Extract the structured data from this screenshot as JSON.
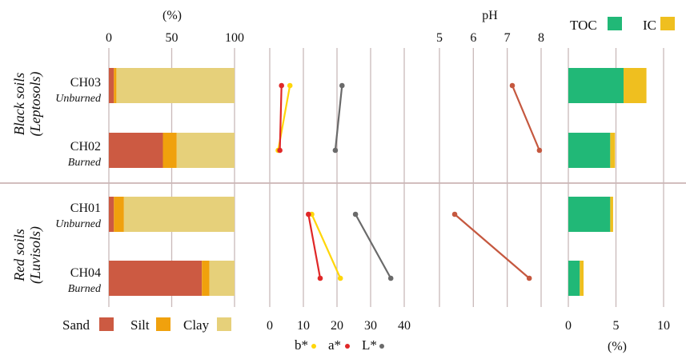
{
  "colors": {
    "sand": "#cc5a42",
    "silt": "#f0a10d",
    "clay": "#e6d07a",
    "toc": "#21b877",
    "ic": "#efbf1f",
    "b_star": "#ffd60a",
    "a_star": "#e02828",
    "l_star": "#6a6a6a",
    "ph": "#c5583f",
    "grid": "#c9b9b9",
    "divider": "#c4a8a8"
  },
  "chart_data": [
    {
      "type": "bar",
      "name": "texture",
      "stacked": true,
      "orientation": "horizontal",
      "xlabel": "(%)",
      "xlim": [
        0,
        100
      ],
      "xticks": [
        "0",
        "50",
        "100"
      ],
      "categories": [
        "CH03",
        "CH02",
        "CH01",
        "CH04"
      ],
      "series": [
        {
          "name": "Sand",
          "values": [
            4,
            43,
            4,
            74
          ]
        },
        {
          "name": "Silt",
          "values": [
            2,
            11,
            8,
            6
          ]
        },
        {
          "name": "Clay",
          "values": [
            94,
            46,
            88,
            20
          ]
        }
      ],
      "legend": [
        "Sand",
        "Silt",
        "Clay"
      ]
    },
    {
      "type": "line",
      "name": "color",
      "xlim": [
        0,
        40
      ],
      "xticks": [
        "0",
        "10",
        "20",
        "30",
        "40"
      ],
      "legend": [
        "b*",
        "a*",
        "L*"
      ],
      "series": [
        {
          "name": "b*",
          "points": [
            [
              6,
              "CH03"
            ],
            [
              2.5,
              "CH02"
            ],
            [
              12.5,
              "CH01"
            ],
            [
              21,
              "CH04"
            ]
          ]
        },
        {
          "name": "a*",
          "points": [
            [
              3.5,
              "CH03"
            ],
            [
              3,
              "CH02"
            ],
            [
              11.5,
              "CH01"
            ],
            [
              15,
              "CH04"
            ]
          ]
        },
        {
          "name": "L*",
          "points": [
            [
              21.5,
              "CH03"
            ],
            [
              19.5,
              "CH02"
            ],
            [
              25.5,
              "CH01"
            ],
            [
              36,
              "CH04"
            ]
          ]
        }
      ],
      "pairs": [
        [
          "CH03",
          "CH02"
        ],
        [
          "CH01",
          "CH04"
        ]
      ]
    },
    {
      "type": "line",
      "name": "ph",
      "xlabel": "pH",
      "xlim": [
        5,
        8
      ],
      "xticks": [
        "5",
        "6",
        "7",
        "8"
      ],
      "series": [
        {
          "name": "pH",
          "points": [
            [
              7.15,
              "CH03"
            ],
            [
              7.95,
              "CH02"
            ],
            [
              5.45,
              "CH01"
            ],
            [
              7.65,
              "CH04"
            ]
          ]
        }
      ],
      "pairs": [
        [
          "CH03",
          "CH02"
        ],
        [
          "CH01",
          "CH04"
        ]
      ]
    },
    {
      "type": "bar",
      "name": "carbon",
      "stacked": true,
      "orientation": "horizontal",
      "xlabel": "(%)",
      "xlim": [
        0,
        10
      ],
      "xticks": [
        "0",
        "5",
        "10"
      ],
      "categories": [
        "CH03",
        "CH02",
        "CH01",
        "CH04"
      ],
      "series": [
        {
          "name": "TOC",
          "values": [
            5.8,
            4.4,
            4.4,
            1.2
          ]
        },
        {
          "name": "IC",
          "values": [
            2.4,
            0.5,
            0.3,
            0.4
          ]
        }
      ],
      "legend": [
        "TOC",
        "IC"
      ]
    }
  ],
  "rows": [
    {
      "site": "CH03",
      "treatment": "Unburned"
    },
    {
      "site": "CH02",
      "treatment": "Burned"
    },
    {
      "site": "CH01",
      "treatment": "Unburned"
    },
    {
      "site": "CH04",
      "treatment": "Burned"
    }
  ],
  "groups": [
    {
      "title": "Black soils",
      "subtitle": "(Leptosols)"
    },
    {
      "title": "Red soils",
      "subtitle": "(Luvisols)"
    }
  ]
}
